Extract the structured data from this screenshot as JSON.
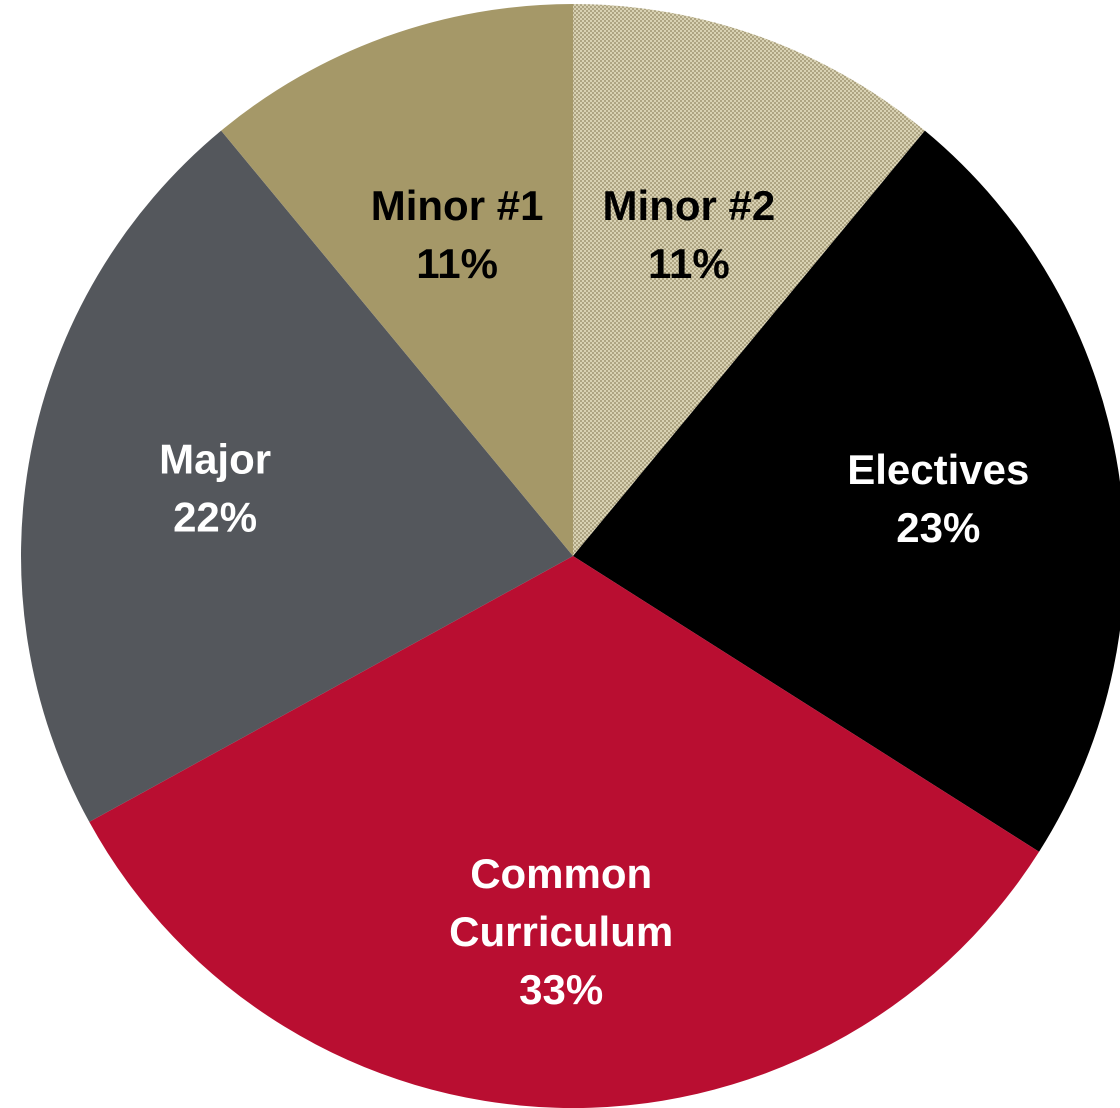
{
  "chart_data": {
    "type": "pie",
    "title": "",
    "start_angle_deg": 0,
    "direction": "clockwise",
    "slices": [
      {
        "name": "Minor #2",
        "value": 11,
        "value_label": "11%",
        "label_lines": [
          "Minor #2"
        ],
        "color": "#c7bd93",
        "pattern": "dotted",
        "label_color": "#000000"
      },
      {
        "name": "Electives",
        "value": 23,
        "value_label": "23%",
        "label_lines": [
          "Electives"
        ],
        "color": "#000000",
        "label_color": "#ffffff"
      },
      {
        "name": "Common Curriculum",
        "value": 33,
        "value_label": "33%",
        "label_lines": [
          "Common",
          "Curriculum"
        ],
        "color": "#b90e31",
        "label_color": "#ffffff"
      },
      {
        "name": "Major",
        "value": 22,
        "value_label": "22%",
        "label_lines": [
          "Major"
        ],
        "color": "#54575c",
        "label_color": "#ffffff"
      },
      {
        "name": "Minor #1",
        "value": 11,
        "value_label": "11%",
        "label_lines": [
          "Minor #1"
        ],
        "color": "#a59868",
        "label_color": "#000000"
      }
    ]
  }
}
